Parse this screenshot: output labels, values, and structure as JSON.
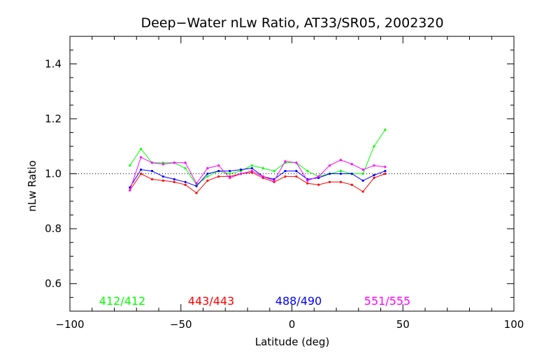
{
  "chart_data": {
    "type": "line",
    "title": "Deep−Water nLw Ratio, AT33/SR05, 2002320",
    "xlabel": "Latitude (deg)",
    "ylabel": "nLw Ratio",
    "xlim": [
      -100,
      100
    ],
    "ylim": [
      0.5,
      1.5
    ],
    "x_ticks": [
      -100,
      -50,
      0,
      50,
      100
    ],
    "x_tick_labels": [
      "−100",
      "−50",
      "0",
      "50",
      "100"
    ],
    "y_ticks": [
      0.6,
      0.8,
      1.0,
      1.2,
      1.4
    ],
    "y_tick_labels": [
      "0.6",
      "0.8",
      "1.0",
      "1.2",
      "1.4"
    ],
    "reference_line": {
      "y": 1.0,
      "style": "dotted"
    },
    "legend_position": "bottom",
    "series": [
      {
        "name": "412/412",
        "color": "#00ff00",
        "x": [
          -73,
          -68,
          -63,
          -58,
          -53,
          -48,
          -43,
          -38,
          -33,
          -28,
          -23,
          -18,
          -13,
          -8,
          -3,
          2,
          7,
          12,
          17,
          22,
          27,
          32,
          37,
          42
        ],
        "y": [
          1.03,
          1.09,
          1.04,
          1.04,
          1.04,
          1.02,
          0.96,
          0.99,
          1.01,
          1.0,
          1.01,
          1.03,
          1.02,
          1.01,
          1.04,
          1.04,
          1.01,
          0.99,
          1.0,
          1.01,
          1.0,
          1.0,
          1.1,
          1.16
        ]
      },
      {
        "name": "443/443",
        "color": "#ff0000",
        "x": [
          -73,
          -68,
          -63,
          -58,
          -53,
          -48,
          -43,
          -38,
          -33,
          -28,
          -23,
          -18,
          -13,
          -8,
          -3,
          2,
          7,
          12,
          17,
          22,
          27,
          32,
          37,
          42
        ],
        "y": [
          0.94,
          1.0,
          0.98,
          0.975,
          0.97,
          0.96,
          0.93,
          0.975,
          0.99,
          0.99,
          1.0,
          1.005,
          0.985,
          0.97,
          0.99,
          0.99,
          0.965,
          0.96,
          0.97,
          0.97,
          0.96,
          0.935,
          0.985,
          1.0
        ]
      },
      {
        "name": "488/490",
        "color": "#0000ff",
        "x": [
          -73,
          -68,
          -63,
          -58,
          -53,
          -48,
          -43,
          -38,
          -33,
          -28,
          -23,
          -18,
          -13,
          -8,
          -3,
          2,
          7,
          12,
          17,
          22,
          27,
          32,
          37,
          42
        ],
        "y": [
          0.95,
          1.015,
          1.01,
          0.99,
          0.98,
          0.97,
          0.955,
          1.0,
          1.01,
          1.01,
          1.015,
          1.02,
          0.99,
          0.98,
          1.01,
          1.01,
          0.98,
          0.985,
          1.0,
          1.0,
          1.0,
          0.975,
          0.995,
          1.01
        ]
      },
      {
        "name": "551/555",
        "color": "#ff00ff",
        "x": [
          -73,
          -68,
          -63,
          -58,
          -53,
          -48,
          -43,
          -38,
          -33,
          -28,
          -23,
          -18,
          -13,
          -8,
          -3,
          2,
          7,
          12,
          17,
          22,
          27,
          32,
          37,
          42
        ],
        "y": [
          0.94,
          1.06,
          1.04,
          1.035,
          1.04,
          1.04,
          0.965,
          1.02,
          1.03,
          0.985,
          1.0,
          1.01,
          0.99,
          0.975,
          1.045,
          1.04,
          0.975,
          0.99,
          1.03,
          1.05,
          1.035,
          1.015,
          1.03,
          1.025
        ]
      }
    ]
  }
}
